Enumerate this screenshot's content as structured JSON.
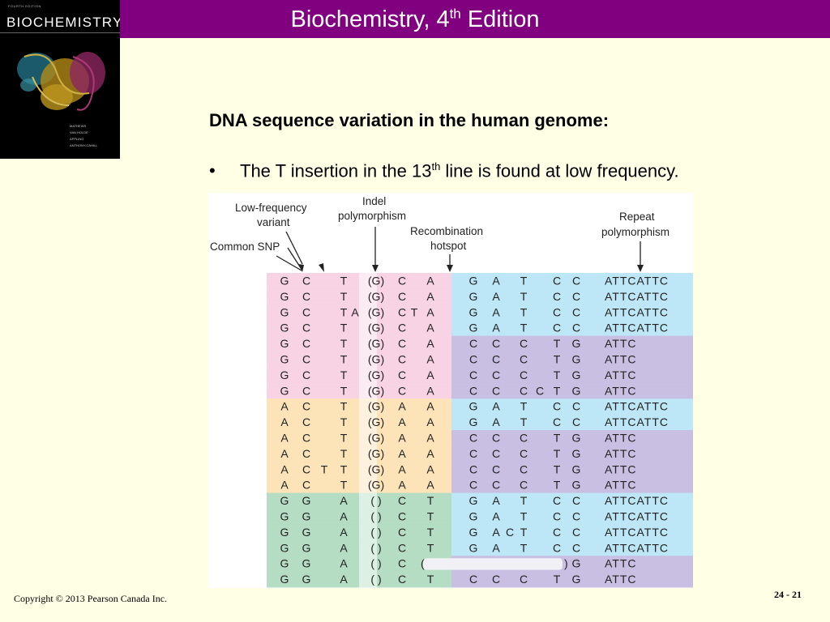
{
  "header": {
    "title": "Biochemistry, 4",
    "title_sup": "th",
    "title_suffix": " Edition"
  },
  "book_cover": {
    "edition_label": "FOURTH EDITION",
    "title": "BIOCHEMISTRY",
    "authors": [
      "MATHEWS",
      "VAN HOLDE",
      "APPLING",
      "ANTHONY-CAHILL"
    ]
  },
  "slide": {
    "heading": "DNA sequence variation in the human genome:",
    "bullet_marker": "•",
    "bullet_pre": "The T insertion in the 13",
    "bullet_sup": "th",
    "bullet_post": " line is found at low frequency."
  },
  "figure": {
    "labels": {
      "low_frequency_variant": [
        "Low-frequency",
        "variant"
      ],
      "indel_polymorphism": [
        "Indel",
        "polymorphism"
      ],
      "recombination_hotspot": [
        "Recombination",
        "hotspot"
      ],
      "repeat_polymorphism": [
        "Repeat",
        "polymorphism"
      ],
      "common_snp": "Common SNP"
    },
    "colors": {
      "pink": "#f7d3e3",
      "orange": "#fde3b8",
      "green": "#b4ddc3",
      "blue": "#bde6f6",
      "purple": "#c8bfe2",
      "highlight": "#e6007e"
    },
    "rows": [
      {
        "g": "pink",
        "r": "blue",
        "snp": [
          "G",
          "C"
        ],
        "ins": "",
        "t": "T",
        "indel": "(G)",
        "c": [
          "C",
          "A"
        ],
        "ins2": "",
        "r1": [
          "G",
          "A",
          "T"
        ],
        "ins3": "",
        "r2": [
          "C",
          "C"
        ],
        "rep": "ATTCATTC"
      },
      {
        "g": "pink",
        "r": "blue",
        "snp": [
          "G",
          "C"
        ],
        "ins": "",
        "t": "T",
        "indel": "(G)",
        "c": [
          "C",
          "A"
        ],
        "ins2": "",
        "r1": [
          "G",
          "A",
          "T"
        ],
        "ins3": "",
        "r2": [
          "C",
          "C"
        ],
        "rep": "ATTCATTC"
      },
      {
        "g": "pink",
        "r": "blue",
        "snp": [
          "G",
          "C"
        ],
        "ins": "",
        "t": "T",
        "tx": "A",
        "indel": "(G)",
        "c": [
          "C",
          "A"
        ],
        "ins2": "T",
        "r1": [
          "G",
          "A",
          "T"
        ],
        "ins3": "",
        "r2": [
          "C",
          "C"
        ],
        "rep": "ATTCATTC"
      },
      {
        "g": "pink",
        "r": "blue",
        "snp": [
          "G",
          "C"
        ],
        "ins": "",
        "t": "T",
        "indel": "(G)",
        "c": [
          "C",
          "A"
        ],
        "ins2": "",
        "r1": [
          "G",
          "A",
          "T"
        ],
        "ins3": "",
        "r2": [
          "C",
          "C"
        ],
        "rep": "ATTCATTC"
      },
      {
        "g": "pink",
        "r": "purple",
        "snp": [
          "G",
          "C"
        ],
        "ins": "",
        "t": "T",
        "indel": "(G)",
        "c": [
          "C",
          "A"
        ],
        "ins2": "",
        "r1": [
          "C",
          "C",
          "C"
        ],
        "ins3": "",
        "r2": [
          "T",
          "G"
        ],
        "rep": "ATTC"
      },
      {
        "g": "pink",
        "r": "purple",
        "snp": [
          "G",
          "C"
        ],
        "ins": "",
        "t": "T",
        "indel": "(G)",
        "c": [
          "C",
          "A"
        ],
        "ins2": "",
        "r1": [
          "C",
          "C",
          "C"
        ],
        "ins3": "",
        "r2": [
          "T",
          "G"
        ],
        "rep": "ATTC"
      },
      {
        "g": "pink",
        "r": "purple",
        "snp": [
          "G",
          "C"
        ],
        "ins": "",
        "t": "T",
        "indel": "(G)",
        "c": [
          "C",
          "A"
        ],
        "ins2": "",
        "r1": [
          "C",
          "C",
          "C"
        ],
        "ins3": "",
        "r2": [
          "T",
          "G"
        ],
        "rep": "ATTC"
      },
      {
        "g": "pink",
        "r": "purple",
        "snp": [
          "G",
          "C"
        ],
        "ins": "",
        "t": "T",
        "indel": "(G)",
        "c": [
          "C",
          "A"
        ],
        "ins2": "",
        "r1": [
          "C",
          "C",
          "C"
        ],
        "ins3": "C",
        "r2": [
          "T",
          "G"
        ],
        "rep": "ATTC"
      },
      {
        "g": "orange",
        "r": "blue",
        "snp": [
          "A",
          "C"
        ],
        "ins": "",
        "t": "T",
        "indel": "(G)",
        "c": [
          "A",
          "A"
        ],
        "ins2": "",
        "r1": [
          "G",
          "A",
          "T"
        ],
        "ins3": "",
        "r2": [
          "C",
          "C"
        ],
        "rep": "ATTCATTC"
      },
      {
        "g": "orange",
        "r": "blue",
        "snp": [
          "A",
          "C"
        ],
        "ins": "",
        "t": "T",
        "indel": "(G)",
        "c": [
          "A",
          "A"
        ],
        "ins2": "",
        "r1": [
          "G",
          "A",
          "T"
        ],
        "ins3": "",
        "r2": [
          "C",
          "C"
        ],
        "rep": "ATTCATTC"
      },
      {
        "g": "orange",
        "r": "purple",
        "snp": [
          "A",
          "C"
        ],
        "ins": "",
        "t": "T",
        "indel": "(G)",
        "c": [
          "A",
          "A"
        ],
        "ins2": "",
        "r1": [
          "C",
          "C",
          "C"
        ],
        "ins3": "",
        "r2": [
          "T",
          "G"
        ],
        "rep": "ATTC"
      },
      {
        "g": "orange",
        "r": "purple",
        "snp": [
          "A",
          "C"
        ],
        "ins": "",
        "t": "T",
        "indel": "(G)",
        "c": [
          "A",
          "A"
        ],
        "ins2": "",
        "r1": [
          "C",
          "C",
          "C"
        ],
        "ins3": "",
        "r2": [
          "T",
          "G"
        ],
        "rep": "ATTC"
      },
      {
        "g": "orange",
        "r": "purple",
        "snp": [
          "A",
          "C"
        ],
        "ins": "T",
        "t": "T",
        "indel": "(G)",
        "c": [
          "A",
          "A"
        ],
        "ins2": "",
        "r1": [
          "C",
          "C",
          "C"
        ],
        "ins3": "",
        "r2": [
          "T",
          "G"
        ],
        "rep": "ATTC"
      },
      {
        "g": "orange",
        "r": "purple",
        "snp": [
          "A",
          "C"
        ],
        "ins": "",
        "t": "T",
        "indel": "(G)",
        "c": [
          "A",
          "A"
        ],
        "ins2": "",
        "r1": [
          "C",
          "C",
          "C"
        ],
        "ins3": "",
        "r2": [
          "T",
          "G"
        ],
        "rep": "ATTC"
      },
      {
        "g": "green",
        "r": "blue",
        "snp": [
          "G",
          "G"
        ],
        "ins": "",
        "t": "A",
        "indel": "(  )",
        "c": [
          "C",
          "T"
        ],
        "ins2": "",
        "r1": [
          "G",
          "A",
          "T"
        ],
        "ins3": "",
        "r2": [
          "C",
          "C"
        ],
        "rep": "ATTCATTC"
      },
      {
        "g": "green",
        "r": "blue",
        "snp": [
          "G",
          "G"
        ],
        "ins": "",
        "t": "A",
        "indel": "(  )",
        "c": [
          "C",
          "T"
        ],
        "ins2": "",
        "r1": [
          "G",
          "A",
          "T"
        ],
        "ins3": "",
        "r2": [
          "C",
          "C"
        ],
        "rep": "ATTCATTC"
      },
      {
        "g": "green",
        "r": "blue",
        "snp": [
          "G",
          "G"
        ],
        "ins": "",
        "t": "A",
        "indel": "(  )",
        "c": [
          "C",
          "T"
        ],
        "ins2": "",
        "r1": [
          "G",
          "A",
          "T"
        ],
        "ins3": "C",
        "r2": [
          "C",
          "C"
        ],
        "rep": "ATTCATTC"
      },
      {
        "g": "green",
        "r": "blue",
        "snp": [
          "G",
          "G"
        ],
        "ins": "",
        "t": "A",
        "indel": "(  )",
        "c": [
          "C",
          "T"
        ],
        "ins2": "",
        "r1": [
          "G",
          "A",
          "T"
        ],
        "ins3": "",
        "r2": [
          "C",
          "C"
        ],
        "rep": "ATTCATTC"
      },
      {
        "g": "green",
        "r": "purple",
        "snp": [
          "G",
          "G"
        ],
        "ins": "",
        "t": "A",
        "indel": "(  )",
        "c": [
          "C",
          ""
        ],
        "ins2": "",
        "r1": [
          "",
          "",
          ""
        ],
        "ins3": "",
        "r2": [
          "",
          "G"
        ],
        "rep": "ATTC",
        "deletion": true
      },
      {
        "g": "green",
        "r": "purple",
        "snp": [
          "G",
          "G"
        ],
        "ins": "",
        "t": "A",
        "indel": "(  )",
        "c": [
          "C",
          "T"
        ],
        "ins2": "",
        "r1": [
          "C",
          "C",
          "C"
        ],
        "ins3": "",
        "r2": [
          "T",
          "G"
        ],
        "rep": "ATTC"
      }
    ]
  },
  "footer": {
    "copyright": "Copyright © 2013 Pearson Canada Inc.",
    "slide_number": "24 - 21"
  }
}
